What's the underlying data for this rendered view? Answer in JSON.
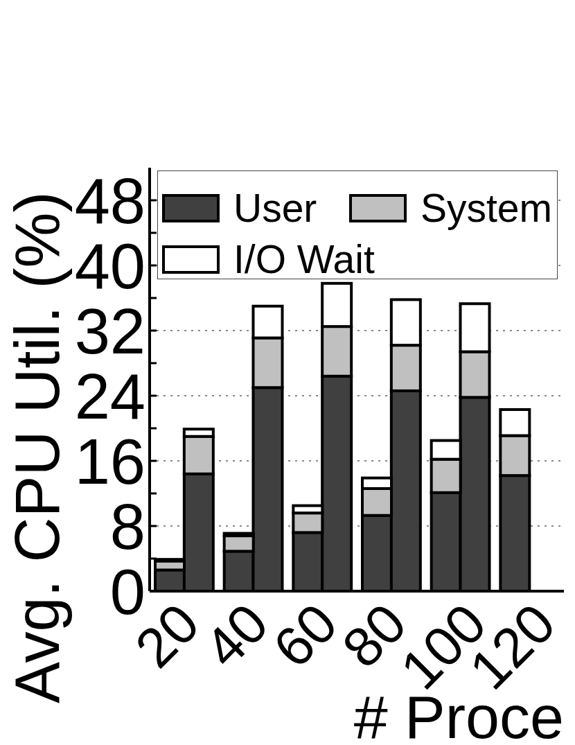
{
  "chart_data": {
    "type": "bar",
    "xlabel": "# Proce",
    "ylabel": "Avg. CPU Util. (%)",
    "categories": [
      "20",
      null,
      "40",
      null,
      "60",
      null,
      "80",
      null,
      "100",
      null,
      "120",
      null
    ],
    "stacked": true,
    "series": [
      {
        "name": "User",
        "color": "#404040",
        "values": [
          2.6,
          14.4,
          4.9,
          25,
          7.2,
          26.4,
          9.3,
          24.6,
          12.1,
          23.8,
          14.2,
          null
        ]
      },
      {
        "name": "System",
        "color": "#c0c0c0",
        "values": [
          1.1,
          4.6,
          1.9,
          6.1,
          2.4,
          6.1,
          3.3,
          5.6,
          4.1,
          5.6,
          4.9,
          null
        ]
      },
      {
        "name": "I/O Wait",
        "color": "#ffffff",
        "values": [
          0.2,
          0.9,
          0.3,
          3.9,
          0.9,
          5.3,
          1.3,
          5.6,
          2.3,
          5.9,
          3.2,
          null
        ]
      }
    ],
    "ylim": [
      0,
      52
    ],
    "yticks": [
      0,
      {
        "value": 4,
        "label": null
      },
      8,
      {
        "value": 12,
        "label": null
      },
      16,
      {
        "value": 20,
        "label": null
      },
      24,
      {
        "value": 28,
        "label": null
      },
      32,
      {
        "value": 36,
        "label": null
      },
      40,
      {
        "value": 44,
        "label": null
      },
      48
    ],
    "grid": "y",
    "legend": "top left"
  }
}
